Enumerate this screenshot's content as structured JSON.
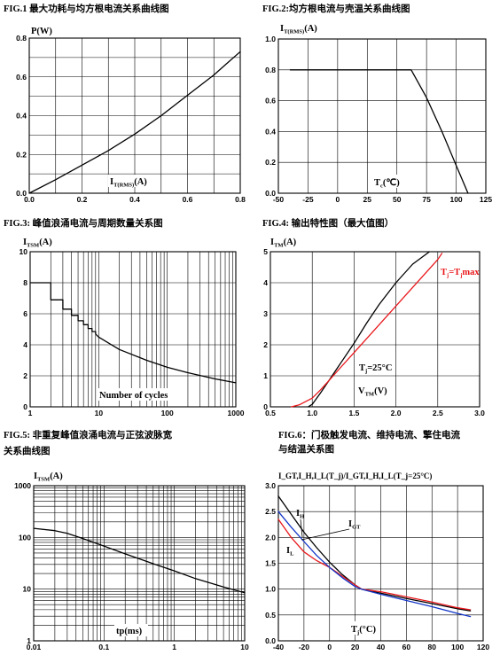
{
  "colors": {
    "black": "#000000",
    "red": "#e8171b",
    "blue": "#1236c8"
  },
  "chart_data": [
    {
      "id": "fig1",
      "type": "line",
      "title": "FIG.1  最大功耗与均方根电流关系曲线图",
      "ylabel_main": "P(W)",
      "ylabel_sub": "",
      "xlabel_main": "I",
      "xlabel_sub": "T(RMS)",
      "xlabel_tail": "(A)",
      "xlim": [
        0,
        0.8
      ],
      "ylim": [
        0,
        0.8
      ],
      "xticks": [
        0,
        0.2,
        0.4,
        0.6,
        0.8
      ],
      "xtick_labels": [
        "0.0",
        "0.2",
        "0.4",
        "0.6",
        "0.8"
      ],
      "yticks": [
        0,
        0.2,
        0.4,
        0.6,
        0.8
      ],
      "ytick_labels": [
        "0.0",
        "0.2",
        "0.4",
        "0.6",
        "0.8"
      ],
      "xgrid": [
        0.1,
        0.2,
        0.3,
        0.4,
        0.5,
        0.6,
        0.7
      ],
      "ygrid": [
        0.1,
        0.2,
        0.3,
        0.4,
        0.5,
        0.6,
        0.7
      ],
      "series": [
        {
          "color": "#000000",
          "x": [
            0,
            0.1,
            0.2,
            0.3,
            0.4,
            0.5,
            0.6,
            0.7,
            0.8
          ],
          "y": [
            0,
            0.07,
            0.145,
            0.22,
            0.305,
            0.4,
            0.505,
            0.61,
            0.73
          ]
        }
      ]
    },
    {
      "id": "fig2",
      "type": "line",
      "title": "FIG.2:均方根电流与壳温关系曲线图",
      "ylabel_main": "I",
      "ylabel_sub": "T(RMS)",
      "ylabel_tail": "(A)",
      "xlabel_main": "T",
      "xlabel_sub": "c",
      "xlabel_tail": "(℃)",
      "xlim": [
        -50,
        125
      ],
      "ylim": [
        0,
        1.0
      ],
      "xticks": [
        -50,
        -25,
        0,
        25,
        50,
        75,
        100,
        125
      ],
      "xtick_labels": [
        "-50",
        "-25",
        "0",
        "25",
        "50",
        "75",
        "100",
        "125"
      ],
      "yticks": [
        0,
        0.2,
        0.4,
        0.6,
        0.8,
        1.0
      ],
      "ytick_labels": [
        "0.0",
        "0.2",
        "0.4",
        "0.6",
        "0.8",
        "1.0"
      ],
      "xgrid": [
        -25,
        0,
        25,
        50,
        75,
        100
      ],
      "ygrid": [
        0.2,
        0.4,
        0.6,
        0.8
      ],
      "series": [
        {
          "color": "#000000",
          "x": [
            -40,
            62,
            75,
            88,
            100,
            110
          ],
          "y": [
            0.8,
            0.8,
            0.62,
            0.4,
            0.18,
            0
          ]
        }
      ]
    },
    {
      "id": "fig3",
      "type": "line",
      "title": "FIG.3:   峰值浪涌电流与周期数量关系图",
      "ylabel_main": "I",
      "ylabel_sub": "TSM",
      "ylabel_tail": "(A)",
      "xlabel_main": "Number of cycles",
      "xlabel_sub": "",
      "xlabel_tail": "",
      "xscale": "log",
      "xlim": [
        1,
        1000
      ],
      "ylim": [
        0,
        10
      ],
      "xticks": [
        1,
        10,
        100,
        1000
      ],
      "xtick_labels": [
        "1",
        "10",
        "100",
        "1000"
      ],
      "yticks": [
        0,
        2,
        4,
        6,
        8,
        10
      ],
      "ytick_labels": [
        "0",
        "2",
        "4",
        "6",
        "8",
        "10"
      ],
      "ygrid": [
        2,
        4,
        6,
        8
      ],
      "series": [
        {
          "color": "#000000",
          "x": [
            1,
            2,
            2,
            3,
            3,
            4,
            4,
            5,
            5,
            6,
            6,
            7,
            7,
            8,
            8,
            9,
            9,
            10,
            20,
            50,
            100,
            200,
            500,
            1000
          ],
          "y": [
            8,
            8,
            6.9,
            6.9,
            6.3,
            6.3,
            5.9,
            5.9,
            5.55,
            5.55,
            5.3,
            5.3,
            5.05,
            5.05,
            4.85,
            4.85,
            4.7,
            4.5,
            3.7,
            3.0,
            2.55,
            2.2,
            1.8,
            1.55
          ]
        }
      ]
    },
    {
      "id": "fig4",
      "type": "line",
      "title": "FIG.4:   输出特性图（最大值图）",
      "ylabel_main": "I",
      "ylabel_sub": "TM",
      "ylabel_tail": "(A)",
      "xlabel_main": "V",
      "xlabel_sub": "TM",
      "xlabel_tail": "(V)",
      "xlim": [
        0.5,
        3.0
      ],
      "ylim": [
        0,
        5
      ],
      "xticks": [
        0.5,
        1.0,
        1.5,
        2.0,
        2.5,
        3.0
      ],
      "xtick_labels": [
        "0.5",
        "1.0",
        "1.5",
        "2.0",
        "2.5",
        "3.0"
      ],
      "yticks": [
        0,
        1,
        2,
        3,
        4,
        5
      ],
      "ytick_labels": [
        "0",
        "1",
        "2",
        "3",
        "4",
        "5"
      ],
      "xgrid": [
        1.0,
        1.5,
        2.0,
        2.5
      ],
      "ygrid": [
        1,
        2,
        3,
        4
      ],
      "series": [
        {
          "color": "#000000",
          "label_main": "T",
          "label_sub": "j",
          "label_tail": "=25°C",
          "x": [
            0.95,
            1.0,
            1.1,
            1.2,
            1.35,
            1.5,
            1.65,
            1.8,
            2.0,
            2.2,
            2.4
          ],
          "y": [
            0,
            0.08,
            0.45,
            0.85,
            1.45,
            2.05,
            2.7,
            3.3,
            4.0,
            4.6,
            5.0
          ]
        },
        {
          "color": "#e8171b",
          "label_main": "T",
          "label_sub": "j",
          "label_tail": "=T",
          "label_sub2": "j",
          "label_tail2": "max",
          "x": [
            0.75,
            0.85,
            1.0,
            1.1,
            1.2,
            1.35,
            1.5,
            1.7,
            1.9,
            2.1,
            2.3,
            2.5,
            2.55
          ],
          "y": [
            0,
            0.07,
            0.28,
            0.55,
            0.85,
            1.3,
            1.75,
            2.35,
            2.95,
            3.55,
            4.15,
            4.75,
            4.95
          ]
        }
      ]
    },
    {
      "id": "fig5",
      "type": "line",
      "title": "FIG.5:   非重复峰值浪涌电流与正弦波脉宽",
      "title2": "关系曲线图",
      "ylabel_main": "I",
      "ylabel_sub": "TSM",
      "ylabel_tail": "(A)",
      "xlabel_main": "tp(ms)",
      "xlabel_sub": "",
      "xlabel_tail": "",
      "xscale": "log",
      "yscale": "log",
      "xlim": [
        0.01,
        10
      ],
      "ylim": [
        1,
        1000
      ],
      "xticks": [
        0.01,
        0.1,
        1,
        10
      ],
      "xtick_labels": [
        "0.01",
        "0.1",
        "1",
        "10"
      ],
      "yticks": [
        1,
        10,
        100,
        1000
      ],
      "ytick_labels": [
        "1",
        "10",
        "100",
        "1000"
      ],
      "series": [
        {
          "color": "#000000",
          "x": [
            0.01,
            0.02,
            0.03,
            0.05,
            0.1,
            0.2,
            0.5,
            1,
            2,
            5,
            10
          ],
          "y": [
            150,
            135,
            120,
            95,
            68,
            48,
            31,
            22.5,
            16,
            11,
            8.5
          ]
        }
      ]
    },
    {
      "id": "fig6",
      "type": "line",
      "title": "FIG.6：门极触发电流、维持电流、擎住电流",
      "title2": "与结温关系图",
      "ylabel_text": "I_GT,I_H,I_L(T_j)/I_GT,I_H,I_L(T_j=25°C)",
      "xlabel_main": "T",
      "xlabel_sub": "j",
      "xlabel_tail": "(°C)",
      "xlim": [
        -40,
        120
      ],
      "ylim": [
        0,
        3.0
      ],
      "xticks": [
        -40,
        -20,
        0,
        20,
        40,
        60,
        80,
        100,
        120
      ],
      "xtick_labels": [
        "-40",
        "-20",
        "0",
        "20",
        "40",
        "60",
        "80",
        "100",
        "120"
      ],
      "yticks": [
        0,
        0.5,
        1.0,
        1.5,
        2.0,
        2.5,
        3.0
      ],
      "ytick_labels": [
        "0.0",
        "0.5",
        "1.0",
        "1.5",
        "2.0",
        "2.5",
        "3.0"
      ],
      "xgrid": [
        -20,
        0,
        20,
        40,
        60,
        80,
        100
      ],
      "ygrid": [
        0.5,
        1.0,
        1.5,
        2.0,
        2.5
      ],
      "series": [
        {
          "color": "#000000",
          "label_main": "I",
          "label_sub": "H",
          "x": [
            -40,
            -30,
            -20,
            -10,
            0,
            10,
            20,
            25,
            40,
            60,
            80,
            100,
            110
          ],
          "y": [
            2.8,
            2.45,
            2.1,
            1.8,
            1.52,
            1.28,
            1.08,
            1.0,
            0.92,
            0.82,
            0.72,
            0.62,
            0.58
          ]
        },
        {
          "color": "#e8171b",
          "label_main": "I",
          "label_sub": "L",
          "x": [
            -40,
            -30,
            -20,
            -10,
            0,
            10,
            20,
            25,
            40,
            60,
            80,
            100,
            110
          ],
          "y": [
            2.35,
            2.0,
            1.72,
            1.55,
            1.42,
            1.25,
            1.08,
            1.0,
            0.95,
            0.85,
            0.75,
            0.64,
            0.6
          ]
        },
        {
          "color": "#1236c8",
          "label_main": "I",
          "label_sub": "GT",
          "x": [
            -40,
            -30,
            -20,
            -10,
            0,
            10,
            20,
            25,
            40,
            60,
            80,
            100,
            110
          ],
          "y": [
            2.5,
            2.2,
            1.92,
            1.65,
            1.42,
            1.22,
            1.05,
            1.0,
            0.9,
            0.78,
            0.66,
            0.53,
            0.47
          ]
        }
      ]
    }
  ]
}
